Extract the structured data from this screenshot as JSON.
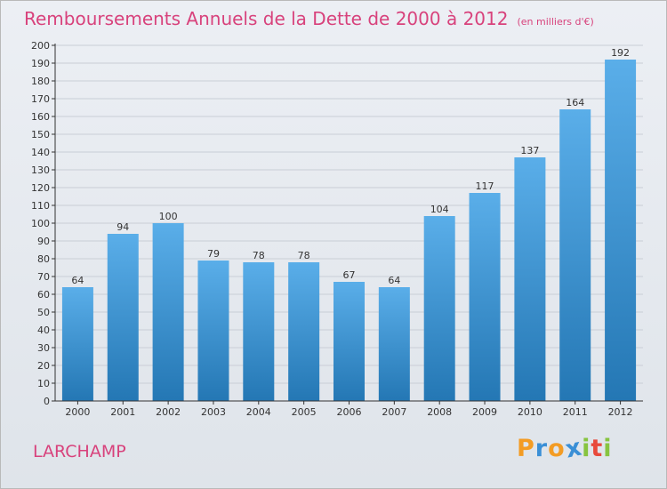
{
  "chart_data": {
    "type": "bar",
    "title": "Remboursements Annuels de la Dette de 2000 à 2012",
    "subtitle": "(en milliers d'€)",
    "categories": [
      "2000",
      "2001",
      "2002",
      "2003",
      "2004",
      "2005",
      "2006",
      "2007",
      "2008",
      "2009",
      "2010",
      "2011",
      "2012"
    ],
    "values": [
      64,
      94,
      100,
      79,
      78,
      78,
      67,
      64,
      104,
      117,
      137,
      164,
      192
    ],
    "ylim": [
      0,
      200
    ],
    "ytick_step": 10,
    "xlabel": "",
    "ylabel": "",
    "grid": true,
    "bar_color_top": "#5aaee9",
    "bar_color_bottom": "#2477b4"
  },
  "footer": {
    "commune": "LARCHAMP",
    "logo_letters": [
      "P",
      "r",
      "o",
      "x",
      "i",
      "t",
      "i"
    ],
    "logo_colors": [
      "#f39c24",
      "#3a8fd6",
      "#f39c24",
      "#3a8fd6",
      "#87c440",
      "#e84a3c",
      "#87c440"
    ]
  },
  "colors": {
    "accent": "#d8427c",
    "grid": "#c9ced6",
    "axis": "#333333",
    "label": "#333333"
  }
}
